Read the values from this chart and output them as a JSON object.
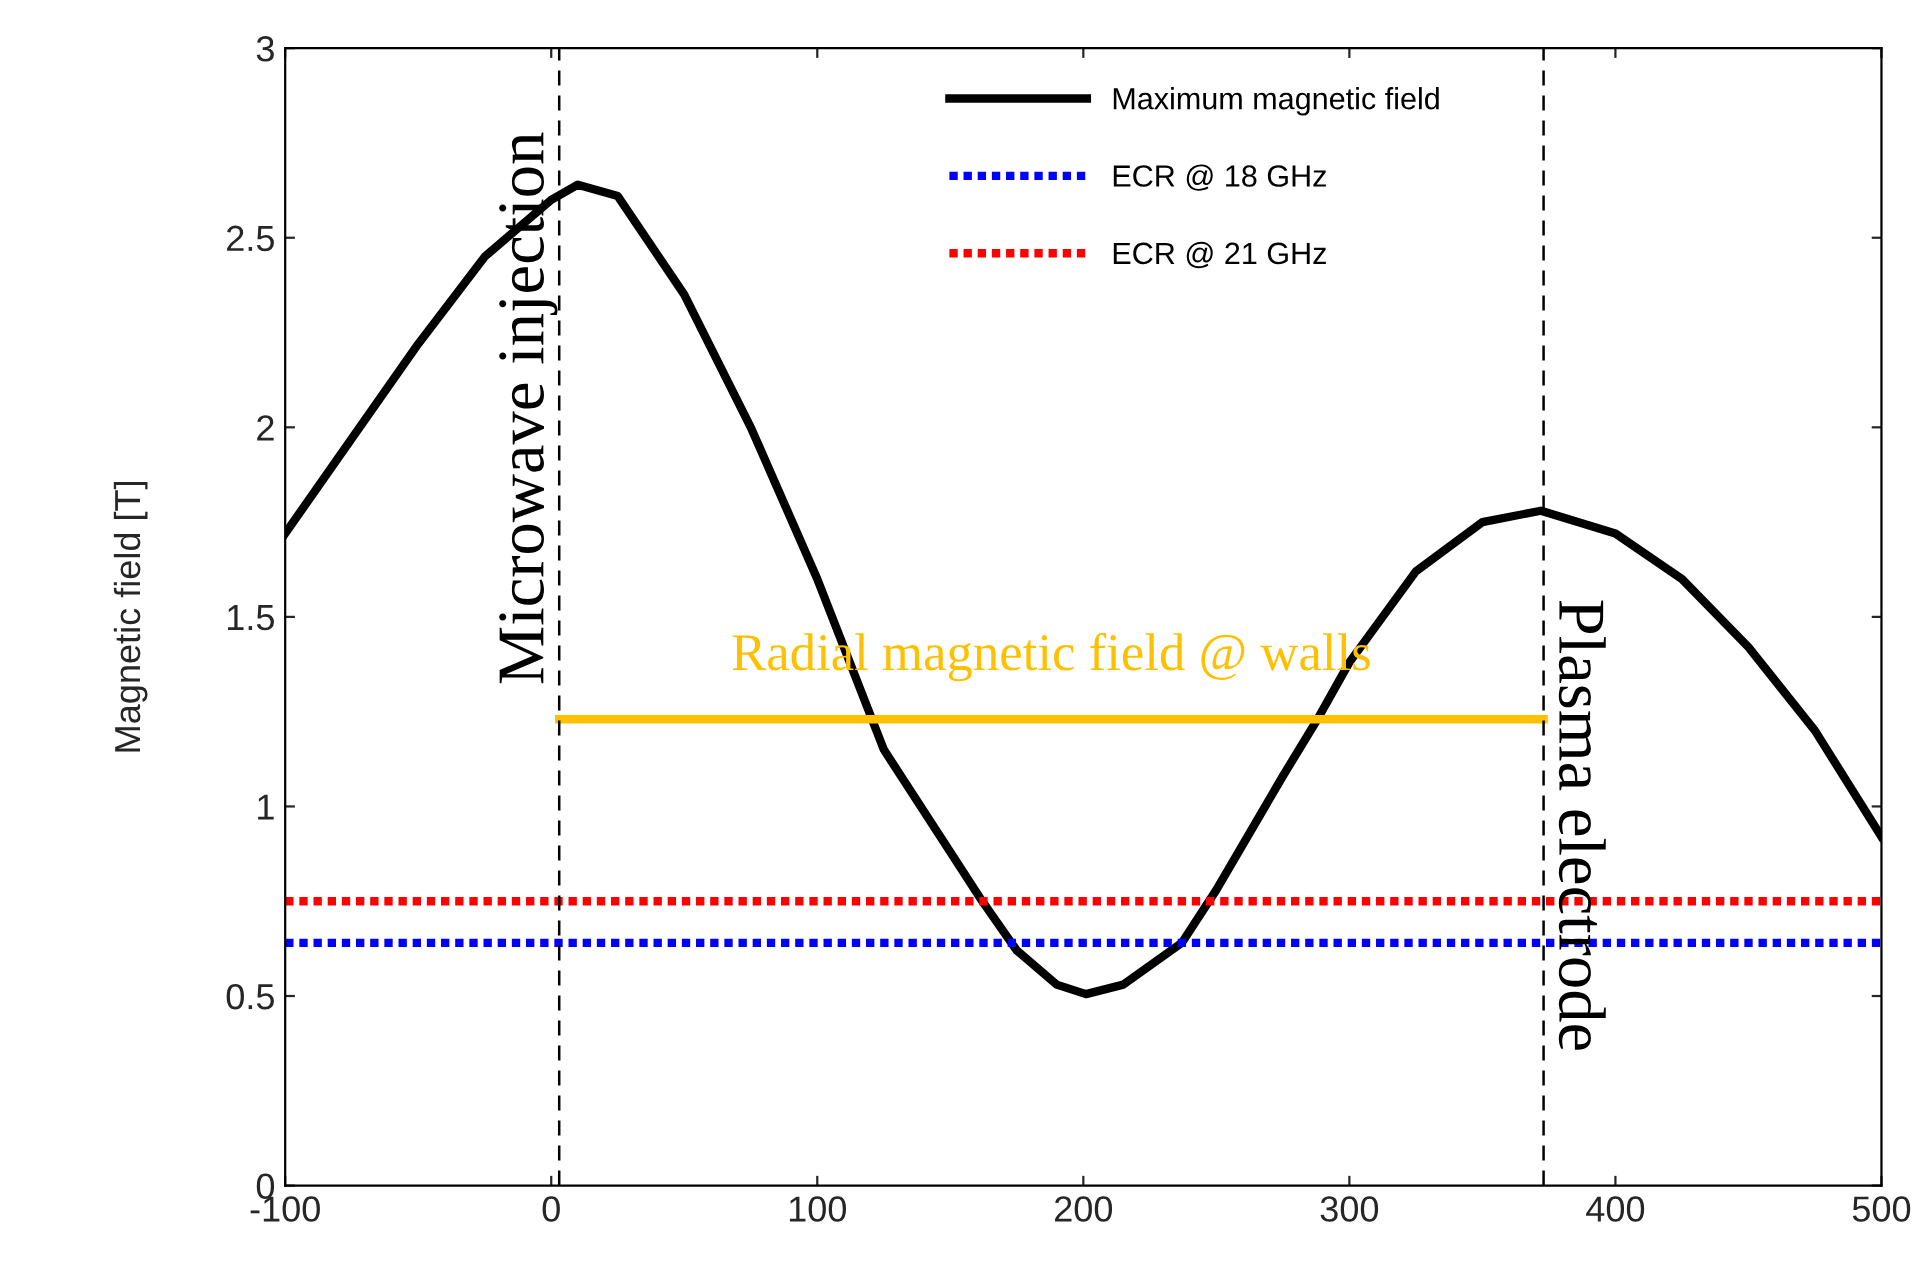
{
  "chart_data": {
    "type": "line",
    "ylabel": "Magnetic field [T]",
    "xlim": [
      -100,
      500
    ],
    "xticks": [
      -100,
      0,
      100,
      200,
      300,
      400,
      500
    ],
    "ylim": [
      0,
      3
    ],
    "yticks": [
      0,
      0.5,
      1,
      1.5,
      2,
      2.5,
      3
    ],
    "grid": false,
    "legend": "top",
    "marker": "none",
    "series": [
      {
        "name": "Maximum magnetic field",
        "color": "#000000",
        "line_style": "solid",
        "x": [
          -100,
          -75,
          -50,
          -25,
          0,
          10,
          25,
          50,
          75,
          100,
          125,
          150,
          162,
          175,
          190,
          201,
          215,
          237,
          250,
          275,
          288,
          300,
          325,
          350,
          372,
          400,
          425,
          450,
          475,
          500
        ],
        "values": [
          1.72,
          1.97,
          2.22,
          2.45,
          2.6,
          2.64,
          2.61,
          2.35,
          2.0,
          1.6,
          1.15,
          0.88,
          0.75,
          0.62,
          0.53,
          0.505,
          0.53,
          0.64,
          0.78,
          1.08,
          1.23,
          1.38,
          1.62,
          1.75,
          1.78,
          1.72,
          1.6,
          1.42,
          1.2,
          0.92
        ]
      },
      {
        "name": "ECR @ 18 GHz",
        "color": "#0000ff",
        "line_style": "dotted",
        "x": [
          -100,
          500
        ],
        "values": [
          0.64,
          0.64
        ]
      },
      {
        "name": "ECR @ 21 GHz",
        "color": "#ff0000",
        "line_style": "dotted",
        "x": [
          -100,
          500
        ],
        "values": [
          0.75,
          0.75
        ]
      },
      {
        "name": "Radial magnetic field @ walls",
        "color": "#ffc000",
        "line_style": "solid",
        "x": [
          3,
          373
        ],
        "values": [
          1.23,
          1.23
        ]
      }
    ],
    "ref_lines": [
      {
        "axis": "x",
        "value": 3,
        "label": "Microwave injection",
        "color": "#000000",
        "line_style": "dashed"
      },
      {
        "axis": "x",
        "value": 373,
        "label": "Plasma electrode",
        "color": "#000000",
        "line_style": "dashed"
      }
    ]
  }
}
